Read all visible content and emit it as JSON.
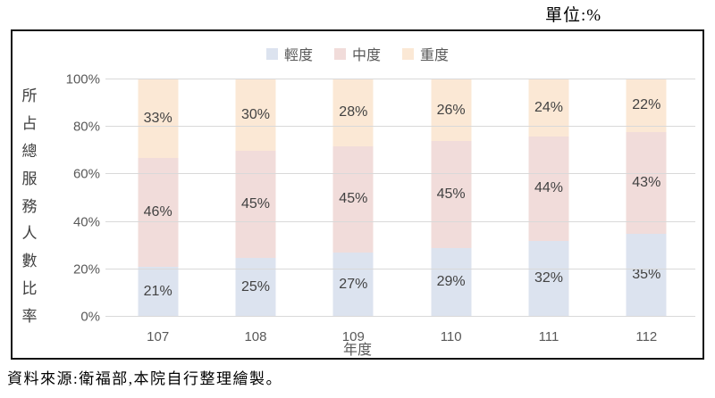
{
  "page": {
    "unit_label": "單位:%",
    "source_note": "資料來源:衛福部,本院自行整理繪製。"
  },
  "chart_data": {
    "type": "bar",
    "stacked": true,
    "categories": [
      "107",
      "108",
      "109",
      "110",
      "111",
      "112"
    ],
    "series": [
      {
        "name": "輕度",
        "color": "#dce3ef",
        "values": [
          21,
          25,
          27,
          29,
          32,
          35
        ]
      },
      {
        "name": "中度",
        "color": "#f1dcda",
        "values": [
          46,
          45,
          45,
          45,
          44,
          43
        ]
      },
      {
        "name": "重度",
        "color": "#fbe8d5",
        "values": [
          33,
          30,
          28,
          26,
          24,
          22
        ]
      }
    ],
    "xlabel": "年度",
    "ylabel": "所占總服務人數比率",
    "y_ticks": [
      "0%",
      "20%",
      "40%",
      "60%",
      "80%",
      "100%"
    ],
    "ylim": [
      0,
      100
    ],
    "grid": true,
    "legend_position": "top",
    "data_label_suffix": "%",
    "gridline_color": "#d9d9d9"
  }
}
